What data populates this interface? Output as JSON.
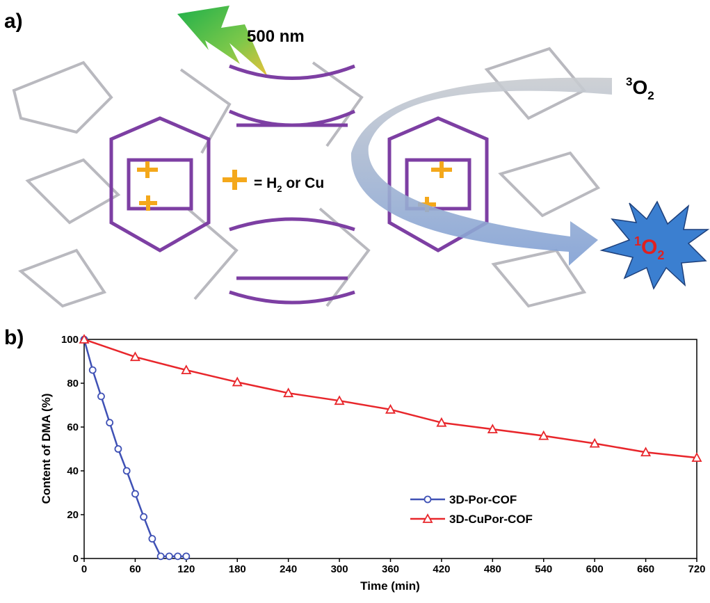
{
  "panel_a": {
    "label": "a)",
    "light": "500 nm",
    "triplet_oxygen": {
      "mass": "3",
      "symbol": "O",
      "count": "2"
    },
    "metal_key": {
      "start": "= H",
      "count": "2",
      "end": " or Cu"
    },
    "singlet_oxygen": {
      "mass": "1",
      "symbol": "O",
      "count": "2"
    }
  },
  "panel_b": {
    "label": "b)"
  },
  "chart_data": {
    "type": "line",
    "x_label": "Time (min)",
    "y_label": "Content of DMA (%)",
    "xlim": [
      0,
      720
    ],
    "ylim": [
      0,
      100
    ],
    "xticks": [
      0,
      60,
      120,
      180,
      240,
      300,
      360,
      420,
      480,
      540,
      600,
      660,
      720
    ],
    "yticks": [
      0,
      20,
      40,
      60,
      80,
      100
    ],
    "legend": "lower right",
    "series": [
      {
        "name": "3D-Por-COF",
        "color": "#3f51b5",
        "marker": "circle",
        "x": [
          0,
          10,
          20,
          30,
          40,
          50,
          60,
          70,
          80,
          90,
          100,
          110,
          120
        ],
        "values": [
          100,
          86,
          74,
          62,
          50,
          40,
          29.5,
          19,
          9,
          1,
          1,
          1,
          1
        ]
      },
      {
        "name": "3D-CuPor-COF",
        "color": "#e8262b",
        "marker": "triangle",
        "x": [
          0,
          60,
          120,
          180,
          240,
          300,
          360,
          420,
          480,
          540,
          600,
          660,
          720
        ],
        "values": [
          100,
          92,
          86,
          80.5,
          75.5,
          72,
          68,
          62,
          59,
          56,
          52.5,
          48.5,
          46
        ]
      }
    ]
  }
}
